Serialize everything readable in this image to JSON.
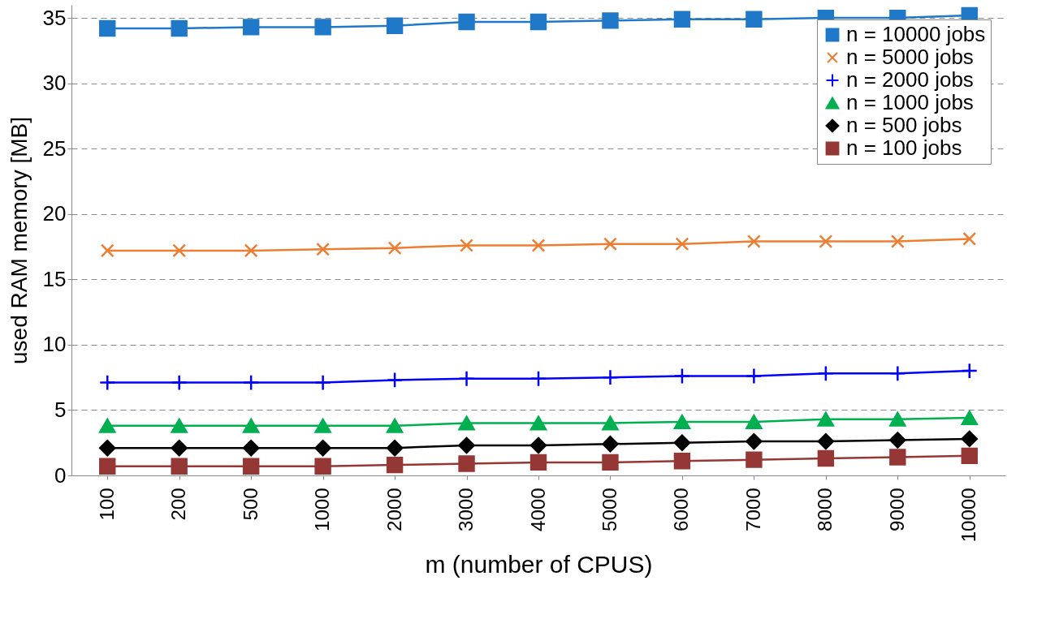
{
  "chart_data": {
    "type": "line",
    "xlabel": "m (number of CPUS)",
    "ylabel": "used RAM memory [MB]",
    "categories": [
      "100",
      "200",
      "500",
      "1000",
      "2000",
      "3000",
      "4000",
      "5000",
      "6000",
      "7000",
      "8000",
      "9000",
      "10000"
    ],
    "ylim": [
      0,
      36
    ],
    "yticks": [
      0,
      5,
      10,
      15,
      20,
      25,
      30,
      35
    ],
    "grid": "y",
    "legend": "top right",
    "series": [
      {
        "name": "n = 10000 jobs",
        "color": "#1f78c8",
        "marker": "square",
        "values": [
          34.2,
          34.2,
          34.3,
          34.3,
          34.4,
          34.7,
          34.7,
          34.8,
          34.9,
          34.9,
          35.0,
          35.0,
          35.2
        ]
      },
      {
        "name": "n = 5000 jobs",
        "color": "#ed7d31",
        "marker": "x",
        "values": [
          17.2,
          17.2,
          17.2,
          17.3,
          17.4,
          17.6,
          17.6,
          17.7,
          17.7,
          17.9,
          17.9,
          17.9,
          18.1
        ]
      },
      {
        "name": "n = 2000 jobs",
        "color": "#0000ff",
        "marker": "cross",
        "values": [
          7.1,
          7.1,
          7.1,
          7.1,
          7.3,
          7.4,
          7.4,
          7.5,
          7.6,
          7.6,
          7.8,
          7.8,
          8.0
        ]
      },
      {
        "name": "n = 1000 jobs",
        "color": "#00b050",
        "marker": "triangle",
        "values": [
          3.8,
          3.8,
          3.8,
          3.8,
          3.8,
          4.0,
          4.0,
          4.0,
          4.1,
          4.1,
          4.3,
          4.3,
          4.4
        ]
      },
      {
        "name": "n = 500 jobs",
        "color": "#000000",
        "marker": "diamond",
        "values": [
          2.1,
          2.1,
          2.1,
          2.1,
          2.1,
          2.3,
          2.3,
          2.4,
          2.5,
          2.6,
          2.6,
          2.7,
          2.8
        ]
      },
      {
        "name": "n = 100 jobs",
        "color": "#953735",
        "marker": "square",
        "values": [
          0.7,
          0.7,
          0.7,
          0.7,
          0.8,
          0.9,
          1.0,
          1.0,
          1.1,
          1.2,
          1.3,
          1.4,
          1.5
        ]
      }
    ]
  }
}
